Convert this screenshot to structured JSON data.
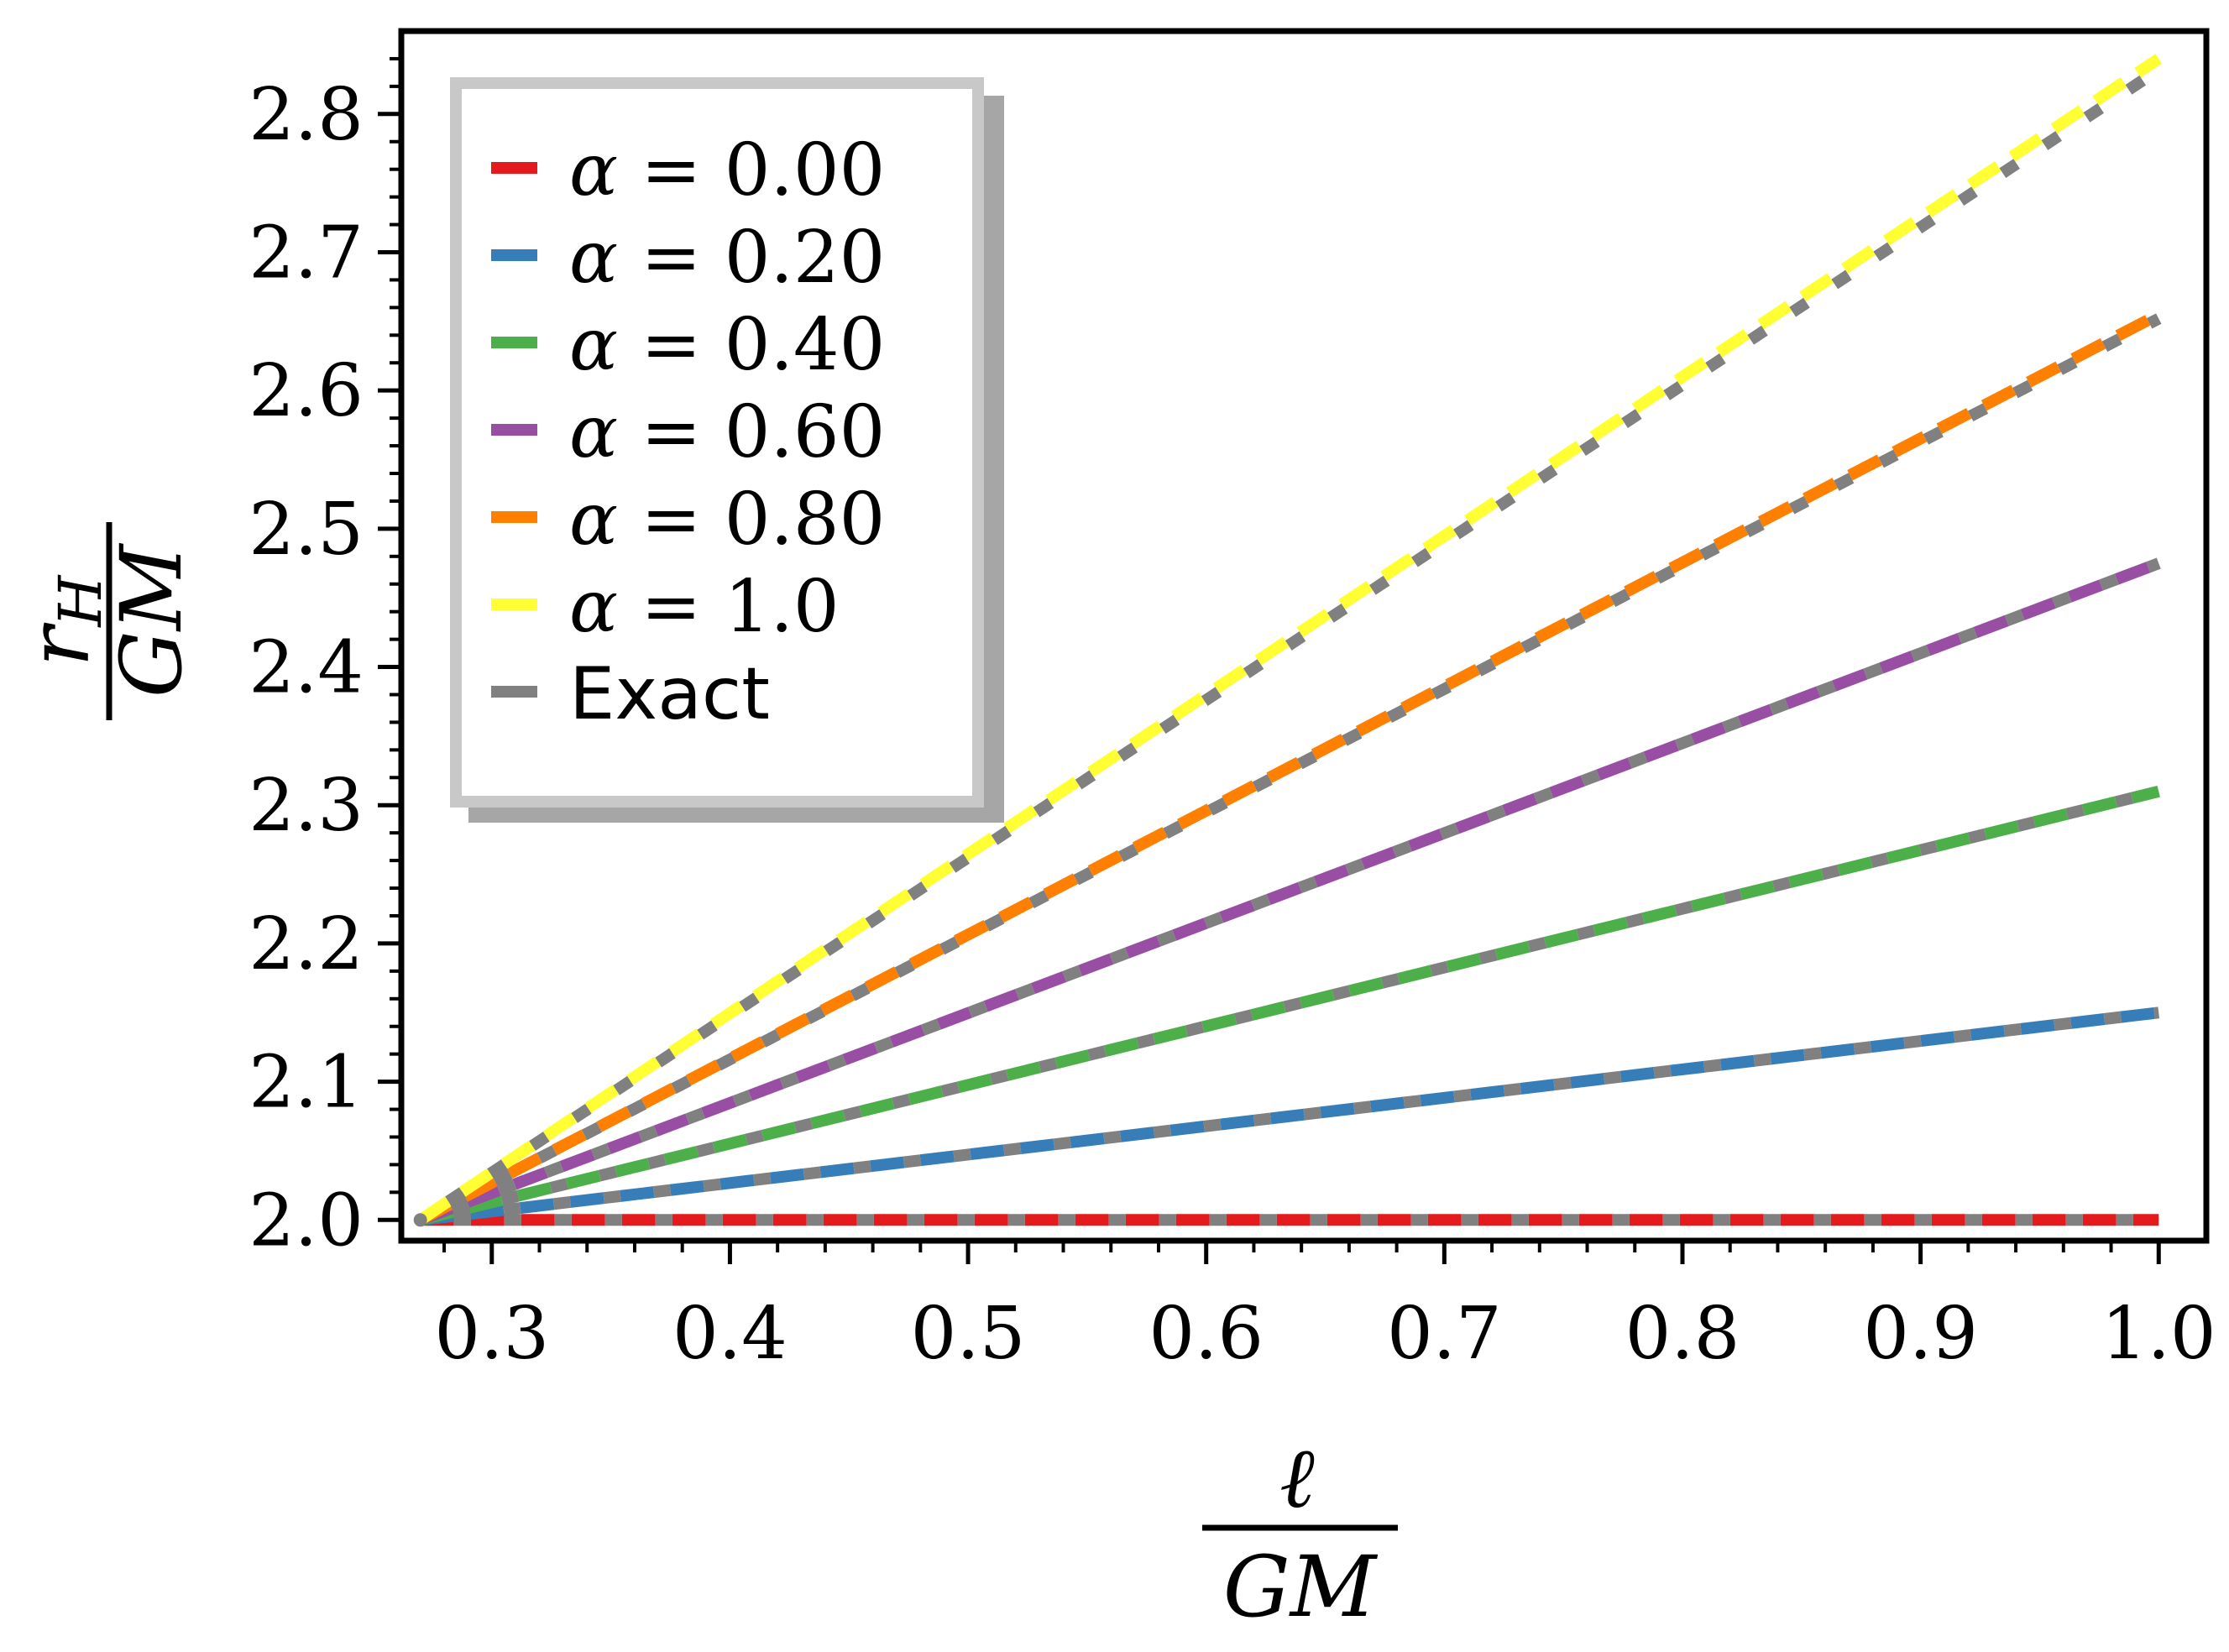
{
  "chart_data": {
    "type": "line",
    "xlabel": {
      "numerator": "ℓ",
      "denominator": "GM"
    },
    "ylabel": {
      "numerator": "r",
      "numerator_sub": "H",
      "denominator": "GM"
    },
    "xlim": [
      0.262,
      1.02
    ],
    "ylim": [
      1.985,
      2.86
    ],
    "x_ticks": [
      0.3,
      0.4,
      0.5,
      0.6,
      0.7,
      0.8,
      0.9,
      1.0
    ],
    "x_tick_labels": [
      "0.3",
      "0.4",
      "0.5",
      "0.6",
      "0.7",
      "0.8",
      "0.9",
      "1.0"
    ],
    "y_ticks": [
      2.0,
      2.1,
      2.2,
      2.3,
      2.4,
      2.5,
      2.6,
      2.7,
      2.8
    ],
    "y_tick_labels": [
      "2.0",
      "2.1",
      "2.2",
      "2.3",
      "2.4",
      "2.5",
      "2.6",
      "2.7",
      "2.8"
    ],
    "x_minor_step": 0.02,
    "y_minor_step": 0.02,
    "legend_position": "top-left",
    "series": [
      {
        "name": "α = 0.00",
        "alpha_symbol": "α",
        "eq": "=",
        "value": "0.00",
        "style": "dashed",
        "color": "#e41a1c",
        "x": [
          0.27,
          1.0
        ],
        "y": [
          2.0,
          2.0
        ]
      },
      {
        "name": "α = 0.20",
        "alpha_symbol": "α",
        "eq": "=",
        "value": "0.20",
        "style": "dashed",
        "color": "#377eb8",
        "x": [
          0.27,
          1.0
        ],
        "y": [
          2.0,
          2.15
        ]
      },
      {
        "name": "α = 0.40",
        "alpha_symbol": "α",
        "eq": "=",
        "value": "0.40",
        "style": "dashed",
        "color": "#4daf4a",
        "x": [
          0.27,
          1.0
        ],
        "y": [
          2.0,
          2.31
        ]
      },
      {
        "name": "α = 0.60",
        "alpha_symbol": "α",
        "eq": "=",
        "value": "0.60",
        "style": "dashed",
        "color": "#984ea3",
        "x": [
          0.27,
          1.0
        ],
        "y": [
          2.0,
          2.475
        ]
      },
      {
        "name": "α = 0.80",
        "alpha_symbol": "α",
        "eq": "=",
        "value": "0.80",
        "style": "dashed",
        "color": "#ff7f00",
        "x": [
          0.27,
          1.0
        ],
        "y": [
          2.0,
          2.655
        ]
      },
      {
        "name": "α = 1.0",
        "alpha_symbol": "α",
        "eq": "=",
        "value": "1.0",
        "style": "dashed",
        "color": "#ffff33",
        "x": [
          0.27,
          1.0
        ],
        "y": [
          2.0,
          2.84
        ]
      }
    ],
    "exact": {
      "name": "Exact",
      "color": "#808080",
      "lines": [
        {
          "x": [
            0.27,
            1.0
          ],
          "y": [
            2.0,
            2.0
          ]
        },
        {
          "x": [
            0.27,
            1.0
          ],
          "y": [
            2.0,
            2.15
          ]
        },
        {
          "x": [
            0.27,
            1.0
          ],
          "y": [
            2.0,
            2.31
          ]
        },
        {
          "x": [
            0.27,
            1.0
          ],
          "y": [
            2.0,
            2.475
          ]
        },
        {
          "x": [
            0.27,
            1.0
          ],
          "y": [
            2.0,
            2.652
          ]
        },
        {
          "x": [
            0.27,
            1.0
          ],
          "y": [
            2.0,
            2.832
          ]
        }
      ]
    }
  }
}
